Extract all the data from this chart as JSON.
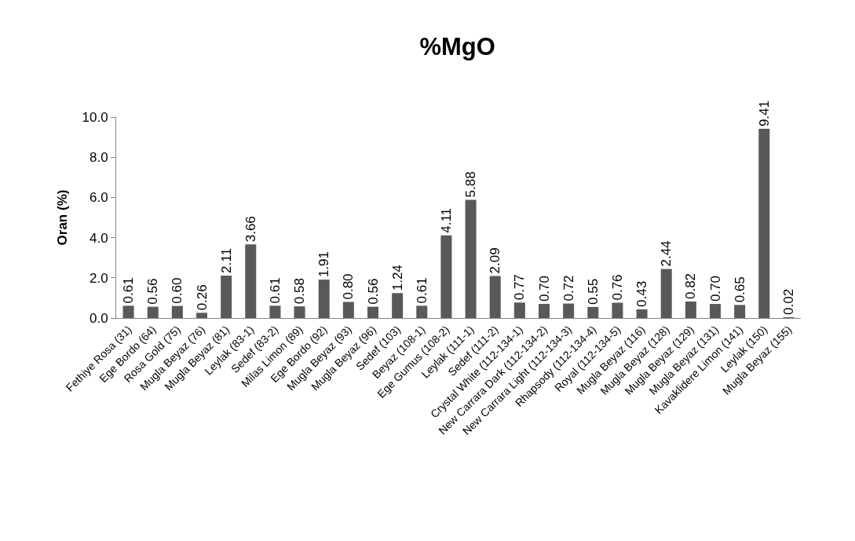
{
  "chart_data": {
    "type": "bar",
    "title": "%MgO",
    "ylabel": "Oran (%)",
    "categories": [
      "Fethiye Rosa (31)",
      "Ege Bordo (64)",
      "Rosa Gold (75)",
      "Mugla Beyaz (76)",
      "Mugla Beyaz (81)",
      "Leylak (83-1)",
      "Sedef (83-2)",
      "Milas Limon (89)",
      "Ege Bordo (92)",
      "Mugla Beyaz (93)",
      "Mugla Beyaz (96)",
      "Sedef (103)",
      "Beyaz (108-1)",
      "Ege Gumus (108-2)",
      "Leylak (111-1)",
      "Sedef (111-2)",
      "Crystal White (112-134-1)",
      "New Carrara Dark (112-134-2)",
      "New Carrara Light (112-134-3)",
      "Rhapsody (112-134-4)",
      "Royal (112-134-5)",
      "Mugla Beyaz (116)",
      "Mugla Beyaz (128)",
      "Mugla Beyaz (129)",
      "Mugla Beyaz (131)",
      "Kavaklidere Limon (141)",
      "Leylak (150)",
      "Mugla Beyaz (155)"
    ],
    "values": [
      0.61,
      0.56,
      0.6,
      0.26,
      2.11,
      3.66,
      0.61,
      0.58,
      1.91,
      0.8,
      0.56,
      1.24,
      0.61,
      4.11,
      5.88,
      2.09,
      0.77,
      0.7,
      0.72,
      0.55,
      0.76,
      0.43,
      2.44,
      0.82,
      0.7,
      0.65,
      9.41,
      0.02
    ],
    "value_labels": [
      "0.61",
      "0.56",
      "0.60",
      "0.26",
      "2.11",
      "3.66",
      "0.61",
      "0.58",
      "1.91",
      "0.80",
      "0.56",
      "1.24",
      "0.61",
      "4.11",
      "5.88",
      "2.09",
      "0.77",
      "0.70",
      "0.72",
      "0.55",
      "0.76",
      "0.43",
      "2.44",
      "0.82",
      "0.70",
      "0.65",
      "9.41",
      "0.02"
    ],
    "color": "#595959",
    "ylim": [
      0,
      10
    ],
    "grid": false,
    "yticks": [
      {
        "value": 0,
        "label": "0.0"
      },
      {
        "value": 2,
        "label": "2.0"
      },
      {
        "value": 4,
        "label": "4.0"
      },
      {
        "value": 6,
        "label": "6.0"
      },
      {
        "value": 8,
        "label": "8.0"
      },
      {
        "value": 10,
        "label": "10.0"
      }
    ],
    "data_labels": false
  }
}
